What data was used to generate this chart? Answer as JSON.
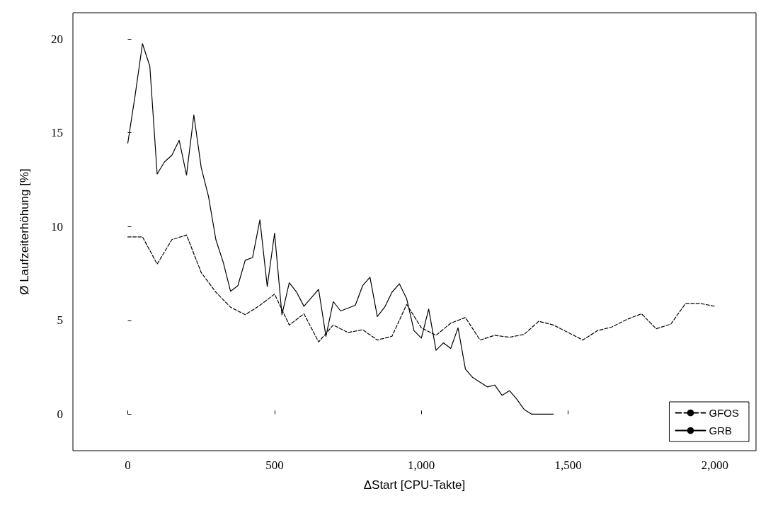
{
  "chart_data": {
    "type": "line",
    "xlabel": "ΔStart [CPU-Takte]",
    "ylabel": "Ø Laufzeiterhöhung [%]",
    "xlim": [
      -187,
      2140
    ],
    "ylim": [
      -1.95,
      21.4
    ],
    "xticks": [
      0,
      500,
      {
        "value": 1000,
        "label": "1,000"
      },
      {
        "value": 1500,
        "label": "1,500"
      },
      {
        "value": 2000,
        "label": "2,000"
      }
    ],
    "yticks": [
      0,
      5,
      10,
      15,
      20
    ],
    "grid": false,
    "legend": "bottom right",
    "marker": "none",
    "series": [
      {
        "name": "GFOS",
        "color": "#000000",
        "line_style": "dashed",
        "x": [
          0,
          50,
          100,
          150,
          200,
          250,
          300,
          350,
          400,
          450,
          500,
          550,
          600,
          650,
          700,
          750,
          800,
          850,
          900,
          950,
          1000,
          1050,
          1100,
          1150,
          1200,
          1250,
          1300,
          1350,
          1400,
          1450,
          1500,
          1550,
          1600,
          1650,
          1700,
          1750,
          1800,
          1850,
          1900,
          1950,
          2000
        ],
        "values": [
          9.45,
          9.45,
          8.0,
          9.3,
          9.55,
          7.55,
          6.5,
          5.7,
          5.3,
          5.8,
          6.4,
          4.75,
          5.35,
          3.85,
          4.75,
          4.35,
          4.5,
          3.95,
          4.15,
          5.85,
          4.6,
          4.2,
          4.85,
          5.15,
          3.95,
          4.2,
          4.1,
          4.25,
          4.95,
          4.75,
          4.35,
          3.95,
          4.45,
          4.65,
          5.05,
          5.35,
          4.55,
          4.8,
          5.9,
          5.9,
          5.75
        ]
      },
      {
        "name": "GRB",
        "color": "#000000",
        "line_style": "solid",
        "x": [
          0,
          25,
          50,
          75,
          100,
          125,
          150,
          175,
          200,
          225,
          250,
          275,
          300,
          325,
          350,
          375,
          400,
          425,
          450,
          475,
          500,
          525,
          550,
          575,
          600,
          625,
          650,
          675,
          700,
          725,
          750,
          775,
          800,
          825,
          850,
          875,
          900,
          925,
          950,
          975,
          1000,
          1025,
          1050,
          1075,
          1100,
          1125,
          1150,
          1175,
          1200,
          1225,
          1250,
          1275,
          1300,
          1325,
          1350,
          1375,
          1400,
          1425,
          1450
        ],
        "values": [
          14.45,
          17.0,
          19.75,
          18.55,
          12.8,
          13.45,
          13.8,
          14.6,
          12.75,
          15.95,
          13.15,
          11.6,
          9.3,
          8.1,
          6.55,
          6.85,
          8.2,
          8.35,
          10.35,
          6.8,
          9.65,
          5.3,
          7.0,
          6.5,
          5.75,
          6.2,
          6.65,
          4.15,
          6.0,
          5.5,
          5.65,
          5.8,
          6.85,
          7.3,
          5.2,
          5.7,
          6.5,
          6.95,
          6.15,
          4.45,
          4.05,
          5.6,
          3.4,
          3.8,
          3.5,
          4.6,
          2.4,
          1.95,
          1.7,
          1.45,
          1.55,
          1.0,
          1.25,
          0.8,
          0.25,
          0,
          0,
          0,
          0
        ]
      }
    ]
  }
}
